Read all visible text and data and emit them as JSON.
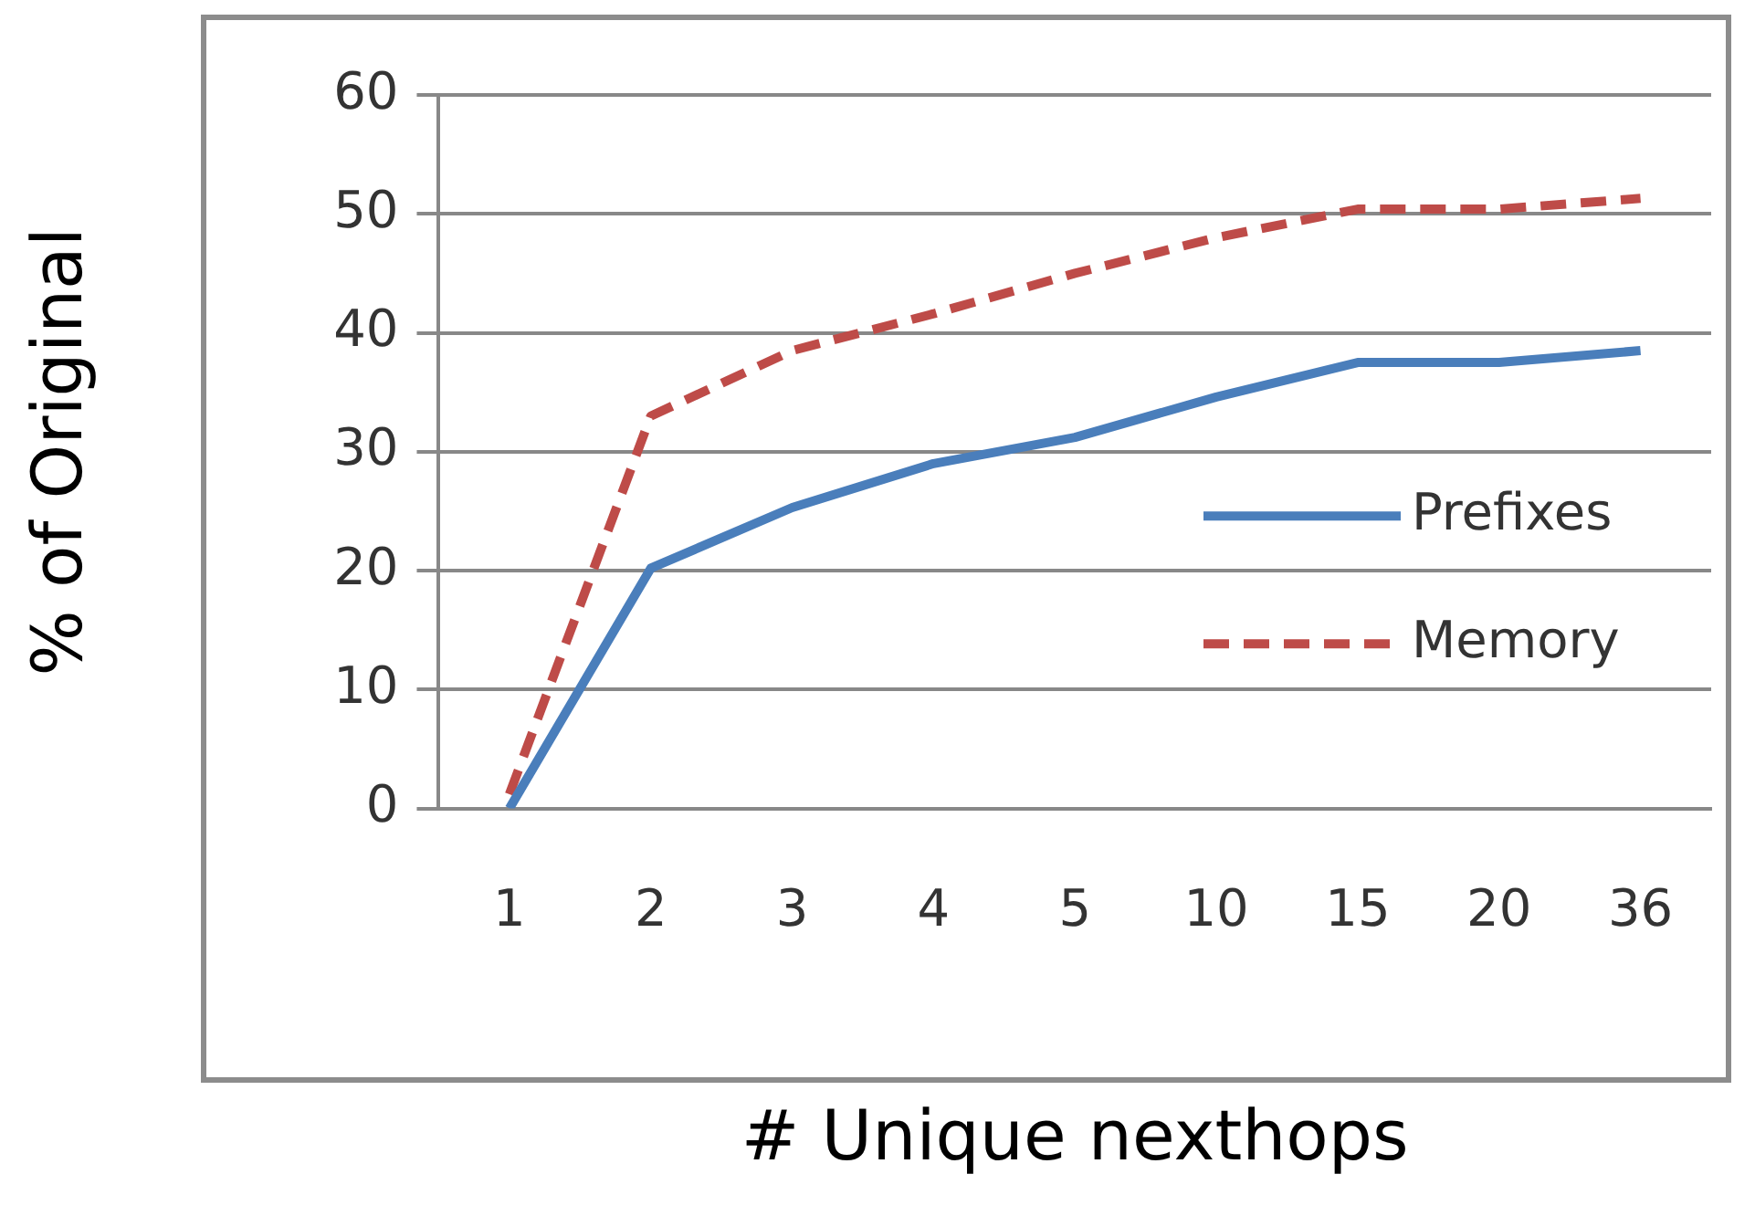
{
  "chart_data": {
    "type": "line",
    "xlabel": "# Unique nexthops",
    "ylabel": "% of Original",
    "categories": [
      "1",
      "2",
      "3",
      "4",
      "5",
      "10",
      "15",
      "20",
      "36"
    ],
    "series": [
      {
        "name": "Prefixes",
        "color": "#4a7ebb",
        "line_style": "solid",
        "values": [
          0,
          20.2,
          25.3,
          29,
          31.2,
          34.6,
          37.5,
          37.5,
          38.5
        ]
      },
      {
        "name": "Memory",
        "color": "#be4b48",
        "line_style": "dashed",
        "values": [
          1.2,
          33,
          38.5,
          41.6,
          45,
          48,
          50.4,
          50.4,
          51.3
        ]
      }
    ],
    "ylim": [
      0,
      60
    ],
    "yticks": [
      0,
      10,
      20,
      30,
      40,
      50,
      60
    ],
    "grid": "y",
    "legend": "right",
    "marker": "none"
  }
}
